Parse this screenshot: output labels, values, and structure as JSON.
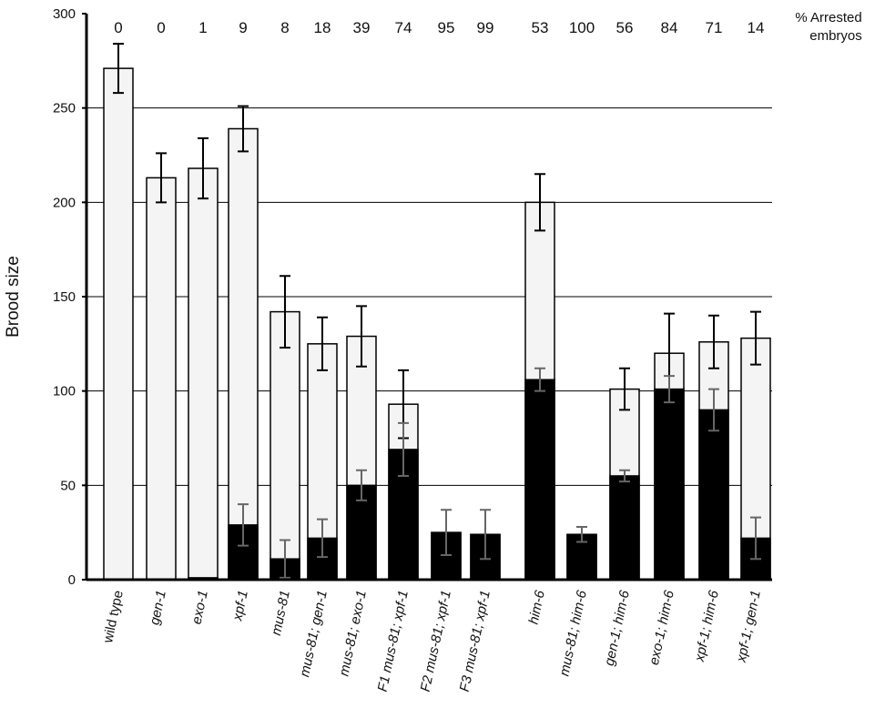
{
  "chart_data": {
    "type": "bar",
    "y_label": "Brood size",
    "categories": [
      "wild type",
      "gen-1",
      "exo-1",
      "xpf-1",
      "mus-81",
      "mus-81; gen-1",
      "mus-81; exo-1",
      "F1 mus-81; xpf-1",
      "F2 mus-81; xpf-1",
      "F3 mus-81; xpf-1",
      "him-6",
      "mus-81; him-6",
      "gen-1; him-6",
      "exo-1; him-6",
      "xpf-1; him-6",
      "xpf-1; gen-1"
    ],
    "series": [
      {
        "color": "#f4f4f5",
        "values": [
          271,
          213,
          218,
          239,
          142,
          125,
          129,
          93,
          25,
          24,
          200,
          24,
          101,
          120,
          126,
          128
        ],
        "errors": [
          13,
          13,
          16,
          12,
          19,
          14,
          16,
          18,
          null,
          null,
          15,
          null,
          11,
          21,
          14,
          14
        ],
        "error_color": "#000000"
      },
      {
        "color": "#000000",
        "values": [
          0,
          0,
          1,
          29,
          11,
          22,
          50,
          69,
          25,
          24,
          106,
          24,
          55,
          101,
          90,
          22
        ],
        "errors": [
          null,
          null,
          null,
          11,
          10,
          10,
          8,
          14,
          12,
          13,
          6,
          4,
          3,
          7,
          11,
          11
        ],
        "error_color": "#666666"
      }
    ],
    "percent_arrested": [
      0,
      0,
      1,
      9,
      8,
      18,
      39,
      74,
      95,
      99,
      53,
      100,
      56,
      84,
      71,
      14
    ],
    "percent_arrested_label": [
      "% Arrested",
      "embryos"
    ],
    "ylim": [
      0,
      300
    ],
    "yticks": [
      0,
      50,
      100,
      150,
      200,
      250,
      300
    ],
    "grid": true
  }
}
